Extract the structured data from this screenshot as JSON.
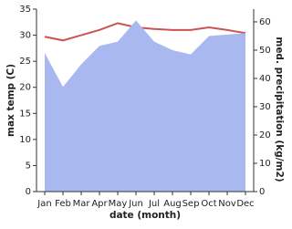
{
  "chart_data": {
    "type": "line-area",
    "x_label": "date (month)",
    "y_label": "max temp (C)",
    "y2_label": "med. precipitation (kg/m2)",
    "categories": [
      "Jan",
      "Feb",
      "Mar",
      "Apr",
      "May",
      "Jun",
      "Jul",
      "Aug",
      "Sep",
      "Oct",
      "Nov",
      "Dec"
    ],
    "series": [
      {
        "name": "max temp",
        "color": "#cd5252",
        "kind": "line",
        "values": [
          29.7,
          29.0,
          30.0,
          31.0,
          32.3,
          31.5,
          31.2,
          31.0,
          31.0,
          31.5,
          31.0,
          30.4
        ]
      },
      {
        "name": "precipitation",
        "color": "#aab8f0",
        "kind": "area",
        "axis": "y2",
        "values": [
          49,
          37,
          45,
          51.5,
          53,
          60.5,
          53,
          50,
          48.5,
          55,
          55.5,
          56
        ]
      }
    ],
    "ylim": [
      0,
      35
    ],
    "yticks": [
      0,
      5,
      10,
      15,
      20,
      25,
      30,
      35
    ],
    "y2lim": [
      0,
      64.5
    ],
    "y2ticks": [
      0,
      10,
      20,
      30,
      40,
      50,
      60
    ]
  }
}
